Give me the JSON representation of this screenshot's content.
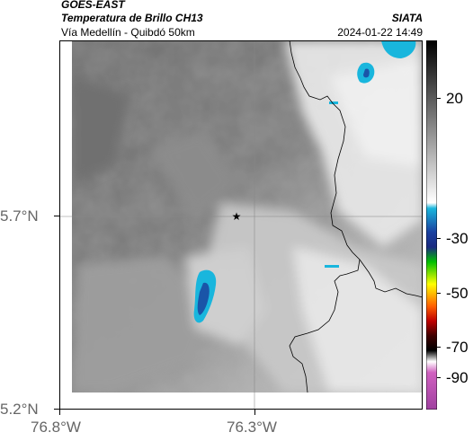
{
  "header": {
    "source": "GOES-EAST",
    "product": "Temperatura de Brillo CH13",
    "region": "Vía Medellín - Quibdó 50km",
    "agency": "SIATA",
    "datetime": "2024-01-22 14:49"
  },
  "axes": {
    "lat_ticks": [
      "5.7°N",
      "5.2°N"
    ],
    "lon_ticks": [
      "76.8°W",
      "76.3°W"
    ]
  },
  "colorbar": {
    "ticks": [
      "20",
      "-30",
      "-50",
      "-70",
      "-90"
    ]
  },
  "colors": {
    "cloud_cold": "#19b6dd",
    "cloud_core": "#1a55a8",
    "border_line": "#000000"
  }
}
